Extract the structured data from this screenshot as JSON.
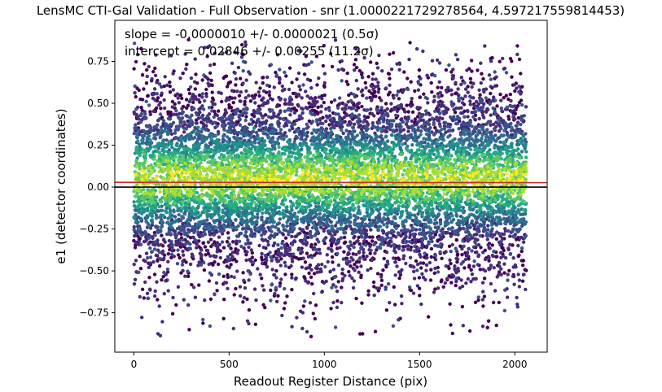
{
  "chart_data": {
    "type": "scatter",
    "title": "LensMC CTI-Gal Validation - Full Observation - snr (1.0000221729278564, 4.597217559814453)",
    "xlabel": "Readout Register Distance (pix)",
    "ylabel": "e1 (detector coordinates)",
    "xlim": [
      -100,
      2170
    ],
    "ylim": [
      -0.985,
      0.995
    ],
    "xticks": [
      0,
      500,
      1000,
      1500,
      2000
    ],
    "xtick_labels": [
      "0",
      "500",
      "1000",
      "1500",
      "2000"
    ],
    "yticks": [
      -0.75,
      -0.5,
      -0.25,
      0.0,
      0.25,
      0.5,
      0.75
    ],
    "ytick_labels": [
      "−0.75",
      "−0.50",
      "−0.25",
      "0.00",
      "0.25",
      "0.50",
      "0.75"
    ],
    "grid": false,
    "colormap": "viridis",
    "x_range_points": [
      0,
      2060
    ],
    "annotations": {
      "slope_text": "slope = -0.0000010 +/- 0.0000021 (0.5σ)",
      "intercept_text": "intercept = 0.02846 +/- 0.00255 (11.2σ)"
    },
    "fit": {
      "slope": -1e-06,
      "intercept": 0.02846
    },
    "reference_line": {
      "y": 0.0
    },
    "colors": {
      "fit_line": "#d62728",
      "reference_line": "#000000",
      "axes": "#000000"
    }
  }
}
